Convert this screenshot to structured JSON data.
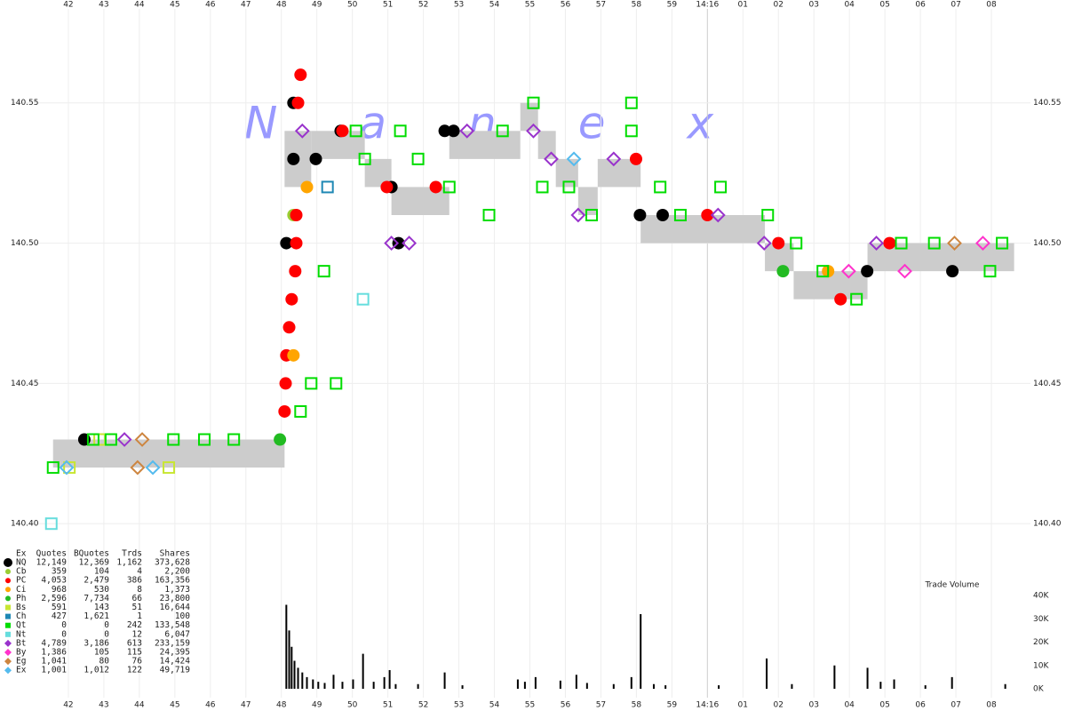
{
  "chart_data": {
    "type": "scatter",
    "watermark": "Nanex",
    "xlim": [
      -1.6,
      27.1
    ],
    "xticks": [
      {
        "value": 0,
        "label": "42"
      },
      {
        "value": 1,
        "label": "43"
      },
      {
        "value": 2,
        "label": "44"
      },
      {
        "value": 3,
        "label": "45"
      },
      {
        "value": 4,
        "label": "46"
      },
      {
        "value": 5,
        "label": "47"
      },
      {
        "value": 6,
        "label": "48"
      },
      {
        "value": 7,
        "label": "49"
      },
      {
        "value": 8,
        "label": "50"
      },
      {
        "value": 9,
        "label": "51"
      },
      {
        "value": 10,
        "label": "52"
      },
      {
        "value": 11,
        "label": "53"
      },
      {
        "value": 12,
        "label": "54"
      },
      {
        "value": 13,
        "label": "55"
      },
      {
        "value": 14,
        "label": "56"
      },
      {
        "value": 15,
        "label": "57"
      },
      {
        "value": 16,
        "label": "58"
      },
      {
        "value": 17,
        "label": "59"
      },
      {
        "value": 18,
        "label": "14:16"
      },
      {
        "value": 19,
        "label": "01"
      },
      {
        "value": 20,
        "label": "02"
      },
      {
        "value": 21,
        "label": "03"
      },
      {
        "value": 22,
        "label": "04"
      },
      {
        "value": 23,
        "label": "05"
      },
      {
        "value": 24,
        "label": "06"
      },
      {
        "value": 25,
        "label": "07"
      },
      {
        "value": 26,
        "label": "08"
      }
    ],
    "ylim": [
      140.395,
      140.5835
    ],
    "yticks": [
      {
        "value": 140.4,
        "label": "140.40"
      },
      140.45,
      {
        "value": 140.5,
        "label": "140.50"
      },
      140.55
    ],
    "grid": true,
    "nbbo": {
      "color": "#cccccc",
      "x": [
        -0.43,
        6.09,
        6.84,
        8.35,
        9.1,
        10.73,
        12.73,
        13.23,
        13.73,
        14.36,
        14.91,
        16.12,
        19.62,
        20.43,
        22.51,
        26.64
      ],
      "bid": [
        140.42,
        140.52,
        140.53,
        140.52,
        140.51,
        140.53,
        140.54,
        140.53,
        140.52,
        140.51,
        140.52,
        140.5,
        140.49,
        140.48,
        140.49,
        140.49
      ],
      "ask": [
        140.43,
        140.54,
        140.54,
        140.53,
        140.52,
        140.54,
        140.55,
        140.54,
        140.53,
        140.52,
        140.53,
        140.51,
        140.5,
        140.49,
        140.5,
        140.5
      ]
    },
    "series": [
      {
        "name": "NQ",
        "color": "#000000",
        "marker": "circle",
        "x": [
          0.45,
          6.14,
          6.34,
          6.34,
          6.97,
          7.67,
          9.1,
          9.3,
          10.6,
          10.85,
          16.1,
          16.74,
          22.5,
          24.9
        ],
        "values": [
          140.43,
          140.5,
          140.53,
          140.55,
          140.53,
          140.54,
          140.52,
          140.5,
          140.54,
          140.54,
          140.51,
          140.51,
          140.49,
          140.49
        ]
      },
      {
        "name": "Cb",
        "color": "#9acd32",
        "marker": "circle",
        "x": [
          6.34
        ],
        "values": [
          140.51
        ]
      },
      {
        "name": "PC",
        "color": "#ff0000",
        "marker": "circle",
        "x": [
          6.54,
          6.47,
          6.42,
          6.42,
          6.39,
          6.29,
          6.22,
          6.14,
          6.12,
          6.09,
          7.72,
          8.97,
          10.35,
          15.99,
          18.0,
          20.0,
          21.75,
          23.13
        ],
        "values": [
          140.56,
          140.55,
          140.51,
          140.5,
          140.49,
          140.48,
          140.47,
          140.46,
          140.45,
          140.44,
          140.54,
          140.52,
          140.52,
          140.53,
          140.51,
          140.5,
          140.48,
          140.5
        ]
      },
      {
        "name": "Ci",
        "color": "#ffa500",
        "marker": "circle",
        "x": [
          6.34,
          21.4,
          6.72
        ],
        "values": [
          140.46,
          140.49,
          140.52
        ]
      },
      {
        "name": "Ph",
        "color": "#22bb22",
        "marker": "circle",
        "x": [
          20.13,
          5.96
        ],
        "values": [
          140.49,
          140.43
        ]
      },
      {
        "name": "Bs",
        "color": "#c8e632",
        "marker": "square",
        "x": [
          0.03,
          2.83,
          0.88
        ],
        "values": [
          140.42,
          140.42,
          140.43
        ]
      },
      {
        "name": "Ch",
        "color": "#1e88b4",
        "marker": "square",
        "x": [
          7.3
        ],
        "values": [
          140.52
        ]
      },
      {
        "name": "Qt",
        "color": "#00dd00",
        "marker": "square",
        "x": [
          -0.43,
          0.7,
          1.2,
          2.96,
          3.83,
          4.66,
          6.54,
          7.2,
          6.84,
          7.54,
          8.1,
          8.35,
          9.35,
          9.85,
          10.73,
          11.85,
          12.23,
          13.1,
          13.35,
          14.1,
          14.74,
          15.86,
          15.86,
          16.67,
          17.24,
          18.37,
          19.7,
          20.5,
          21.25,
          22.2,
          23.46,
          24.39,
          25.96,
          26.3
        ],
        "values": [
          140.42,
          140.43,
          140.43,
          140.43,
          140.43,
          140.43,
          140.44,
          140.49,
          140.45,
          140.45,
          140.54,
          140.53,
          140.54,
          140.53,
          140.52,
          140.51,
          140.54,
          140.55,
          140.52,
          140.52,
          140.51,
          140.55,
          140.54,
          140.52,
          140.51,
          140.52,
          140.51,
          140.5,
          140.49,
          140.48,
          140.5,
          140.5,
          140.49,
          140.5
        ]
      },
      {
        "name": "Nt",
        "color": "#66dddd",
        "marker": "square",
        "x": [
          8.3,
          -0.48
        ],
        "values": [
          140.48,
          140.4
        ]
      },
      {
        "name": "Bt",
        "color": "#9933cc",
        "marker": "diamond",
        "x": [
          1.58,
          6.59,
          9.1,
          9.6,
          11.23,
          13.1,
          13.6,
          14.36,
          15.36,
          18.3,
          19.6,
          22.76
        ],
        "values": [
          140.43,
          140.54,
          140.5,
          140.5,
          140.54,
          140.54,
          140.53,
          140.51,
          140.53,
          140.51,
          140.5,
          140.5
        ]
      },
      {
        "name": "By",
        "color": "#ff33cc",
        "marker": "diamond",
        "x": [
          23.56,
          25.76,
          21.98
        ],
        "values": [
          140.49,
          140.5,
          140.49
        ]
      },
      {
        "name": "Eg",
        "color": "#cd853f",
        "marker": "diamond",
        "x": [
          2.08,
          1.95,
          24.96
        ],
        "values": [
          140.43,
          140.42,
          140.5
        ]
      },
      {
        "name": "Ex",
        "color": "#55bbee",
        "marker": "diamond",
        "x": [
          -0.05,
          2.38,
          14.24
        ],
        "values": [
          140.42,
          140.42,
          140.53
        ]
      }
    ],
    "legend_table": {
      "columns": [
        "Ex",
        "Quotes",
        "BQuotes",
        "Trds",
        "Shares"
      ],
      "rows": [
        [
          "12,149",
          "12,369",
          "1,162",
          "373,628"
        ],
        [
          "359",
          "104",
          "4",
          "2,200"
        ],
        [
          "4,053",
          "2,479",
          "386",
          "163,356"
        ],
        [
          "968",
          "530",
          "8",
          "1,373"
        ],
        [
          "2,596",
          "7,734",
          "66",
          "23,800"
        ],
        [
          "591",
          "143",
          "51",
          "16,644"
        ],
        [
          "427",
          "1,621",
          "1",
          "100"
        ],
        [
          "0",
          "0",
          "242",
          "133,548"
        ],
        [
          "0",
          "0",
          "12",
          "6,047"
        ],
        [
          "4,789",
          "3,186",
          "613",
          "233,159"
        ],
        [
          "1,386",
          "105",
          "115",
          "24,395"
        ],
        [
          "1,041",
          "80",
          "76",
          "14,424"
        ],
        [
          "1,001",
          "1,012",
          "122",
          "49,719"
        ]
      ]
    },
    "volume": {
      "label": "Trade Volume",
      "color": "#000000",
      "y2lim": [
        0,
        40000
      ],
      "y2ticks": [
        {
          "value": 0,
          "label": "0K"
        },
        {
          "value": 10000,
          "label": "10K"
        },
        {
          "value": 20000,
          "label": "20K"
        },
        {
          "value": 30000,
          "label": "30K"
        },
        {
          "value": 40000,
          "label": "40K"
        }
      ],
      "x": [
        6.14,
        6.22,
        6.29,
        6.37,
        6.47,
        6.59,
        6.72,
        6.89,
        7.04,
        7.22,
        7.47,
        7.72,
        8.02,
        8.3,
        8.6,
        8.9,
        9.05,
        9.22,
        9.85,
        10.6,
        11.1,
        12.66,
        12.86,
        13.16,
        13.86,
        14.31,
        14.61,
        15.36,
        15.86,
        16.12,
        16.49,
        16.82,
        18.32,
        19.67,
        20.38,
        21.58,
        22.51,
        22.88,
        23.26,
        24.14,
        24.89,
        26.39
      ],
      "values": [
        36000,
        25000,
        18000,
        12000,
        9000,
        7000,
        5000,
        4000,
        3000,
        2500,
        6000,
        3000,
        4000,
        15000,
        3000,
        5000,
        8000,
        2000,
        2000,
        7000,
        1500,
        4000,
        3000,
        5000,
        3500,
        6000,
        2500,
        2000,
        5000,
        32000,
        2000,
        1500,
        1500,
        13000,
        2000,
        10000,
        9000,
        3000,
        4000,
        1500,
        5000,
        2000
      ]
    }
  }
}
